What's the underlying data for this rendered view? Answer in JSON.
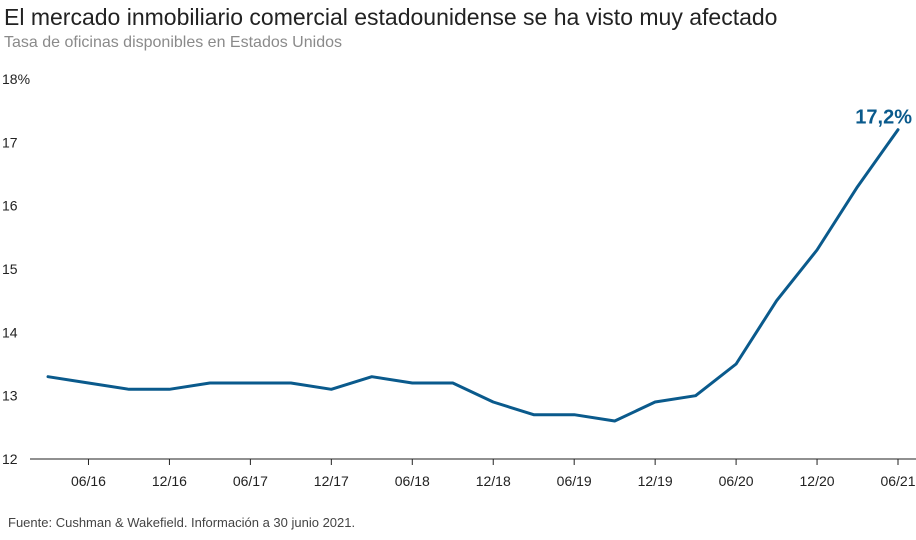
{
  "title": "El mercado inmobiliario comercial estadounidense se ha visto muy afectado",
  "subtitle": "Tasa de oficinas disponibles en Estados Unidos",
  "footer": "Fuente: Cushman & Wakefield. Información a 30 junio 2021.",
  "colors": {
    "line": "#0a5a8c",
    "annotation": "#0a5a8c",
    "axis": "#222222"
  },
  "chart_data": {
    "type": "line",
    "x": [
      "03/16",
      "06/16",
      "09/16",
      "12/16",
      "03/17",
      "06/17",
      "09/17",
      "12/17",
      "03/18",
      "06/18",
      "09/18",
      "12/18",
      "03/19",
      "06/19",
      "09/19",
      "12/19",
      "03/20",
      "06/20",
      "09/20",
      "12/20",
      "03/21",
      "06/21"
    ],
    "x_tick_labels": [
      "06/16",
      "12/16",
      "06/17",
      "12/17",
      "06/18",
      "12/18",
      "06/19",
      "12/19",
      "06/20",
      "12/20",
      "06/21"
    ],
    "series": [
      {
        "values": [
          13.3,
          13.2,
          13.1,
          13.1,
          13.2,
          13.2,
          13.2,
          13.1,
          13.3,
          13.2,
          13.2,
          12.9,
          12.7,
          12.7,
          12.6,
          12.9,
          13.0,
          13.5,
          14.5,
          15.3,
          16.3,
          17.2
        ]
      }
    ],
    "y_tick_labels": [
      "12",
      "13",
      "14",
      "15",
      "16",
      "17",
      "18%"
    ],
    "ylim": [
      12,
      18
    ],
    "annotation": {
      "text": "17,2%",
      "x": "06/21",
      "y": 17.2
    },
    "grid": false,
    "xlabel": "",
    "ylabel": ""
  }
}
